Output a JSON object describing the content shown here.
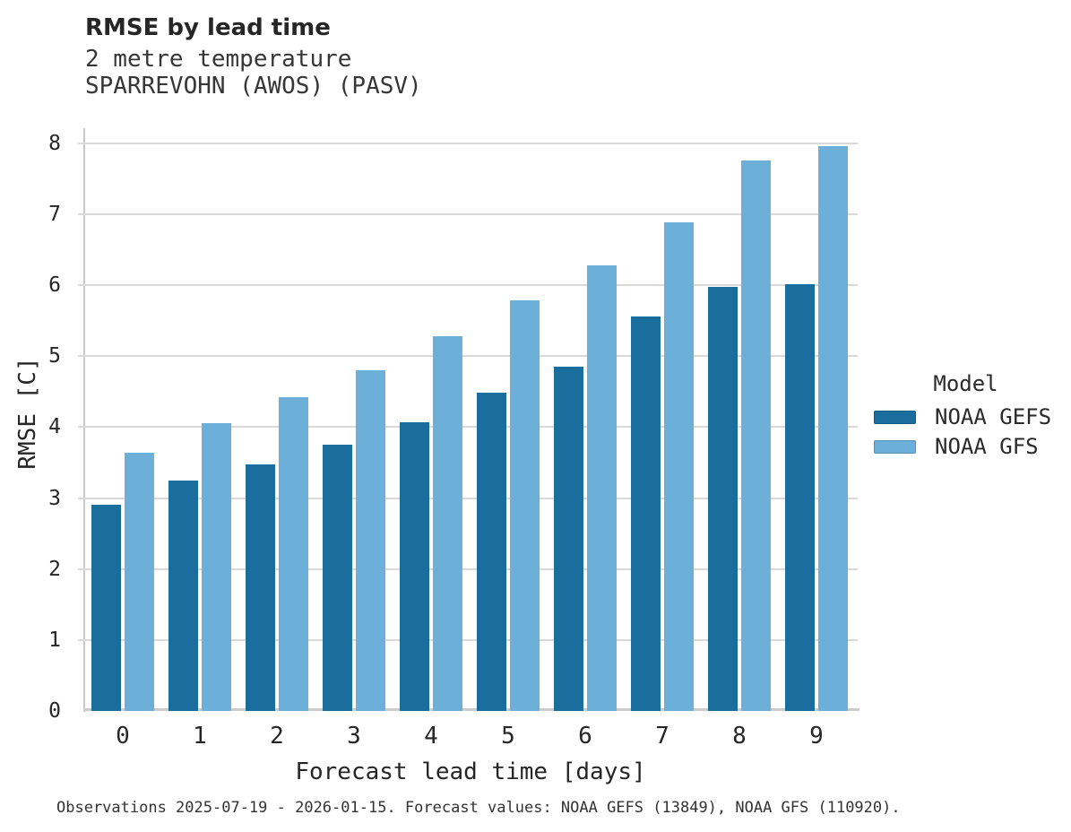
{
  "header": {
    "title": "RMSE by lead time",
    "subtitle_line1": "2 metre temperature",
    "subtitle_line2": "SPARREVOHN (AWOS) (PASV)"
  },
  "footer": {
    "caption": "Observations 2025-07-19 - 2026-01-15. Forecast values: NOAA GEFS (13849), NOAA GFS (110920)."
  },
  "colors": {
    "gefs_dark_blue": "#1a6e9d",
    "gfs_light_blue": "#6cb0d9",
    "gridline_gray": "#d9d9d9"
  },
  "chart_data": {
    "type": "bar",
    "title": "RMSE by lead time",
    "subtitle": [
      "2 metre temperature",
      "SPARREVOHN (AWOS) (PASV)"
    ],
    "categories": [
      "0",
      "1",
      "2",
      "3",
      "4",
      "5",
      "6",
      "7",
      "8",
      "9"
    ],
    "series": [
      {
        "name": "NOAA GEFS",
        "color": "#1a6e9d",
        "values": [
          2.91,
          3.25,
          3.48,
          3.75,
          4.07,
          4.48,
          4.85,
          5.56,
          5.98,
          6.01
        ]
      },
      {
        "name": "NOAA GFS",
        "color": "#6cb0d9",
        "values": [
          3.64,
          4.05,
          4.42,
          4.8,
          5.28,
          5.79,
          6.28,
          6.88,
          7.76,
          7.96
        ]
      }
    ],
    "xlabel": "Forecast lead time [days]",
    "ylabel": "RMSE [C]",
    "ylim": [
      0,
      8.21
    ],
    "yticks": [
      0,
      1,
      2,
      3,
      4,
      5,
      6,
      7,
      8
    ],
    "grid": true,
    "legend_title": "Model",
    "legend_position": "right"
  }
}
